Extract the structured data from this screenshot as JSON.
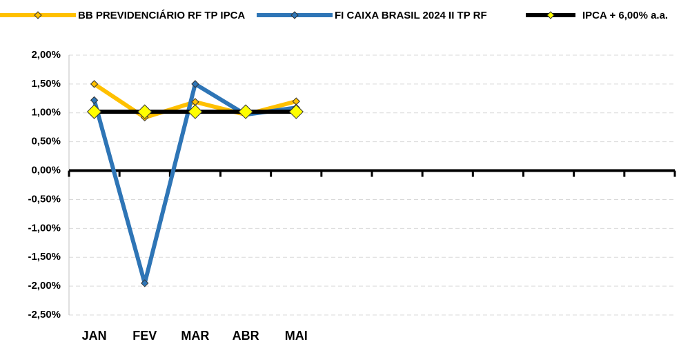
{
  "chart_data": {
    "type": "line",
    "categories": [
      "JAN",
      "FEV",
      "MAR",
      "ABR",
      "MAI",
      null,
      null,
      null,
      null,
      null,
      null,
      null
    ],
    "series": [
      {
        "name": "BB PREVIDENCIÁRIO RF TP IPCA",
        "color": "#FFC000",
        "values": [
          1.5,
          0.92,
          1.19,
          0.97,
          1.2,
          null,
          null,
          null,
          null,
          null,
          null,
          null
        ]
      },
      {
        "name": "FI CAIXA BRASIL 2024 II TP RF",
        "color": "#2E75B6",
        "values": [
          1.22,
          -1.95,
          1.5,
          0.97,
          1.09,
          null,
          null,
          null,
          null,
          null,
          null,
          null
        ]
      },
      {
        "name": "IPCA + 6,00% a.a.",
        "color": "#000000",
        "marker_color": "#FFFF00",
        "values": [
          1.02,
          1.02,
          1.02,
          1.02,
          1.02,
          null,
          null,
          null,
          null,
          null,
          null,
          null
        ]
      }
    ],
    "ylim": [
      -2.5,
      2.0
    ],
    "yticks": [
      {
        "value": 2.0,
        "label": "2,00%"
      },
      {
        "value": 1.5,
        "label": "1,50%"
      },
      {
        "value": 1.0,
        "label": "1,00%"
      },
      {
        "value": 0.5,
        "label": "0,50%"
      },
      {
        "value": 0.0,
        "label": "0,00%"
      },
      {
        "value": -0.5,
        "label": "-0,50%"
      },
      {
        "value": -1.0,
        "label": "-1,00%"
      },
      {
        "value": -1.5,
        "label": "-1,50%"
      },
      {
        "value": -2.0,
        "label": "-2,00%"
      },
      {
        "value": -2.5,
        "label": "-2,50%"
      }
    ],
    "grid": true,
    "legend": "top"
  }
}
